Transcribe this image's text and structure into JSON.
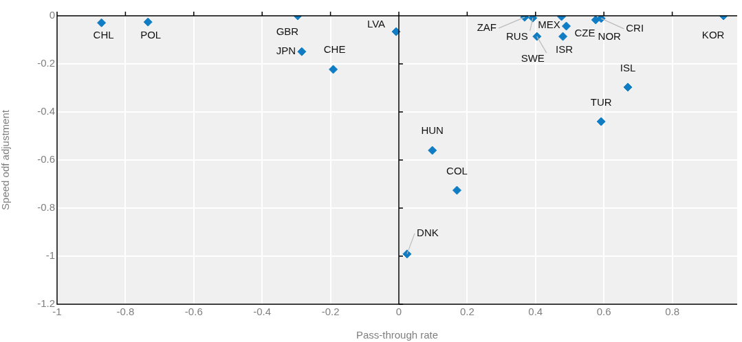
{
  "chart_data": {
    "type": "scatter",
    "xlabel": "Pass-through rate",
    "ylabel": "Speed odf adjustment",
    "x": [
      -0.87,
      -0.734,
      -0.296,
      -0.284,
      -0.192,
      -0.008,
      0.368,
      0.392,
      0.476,
      0.404,
      0.48,
      0.49,
      0.576,
      0.592,
      0.95,
      0.67,
      0.592,
      0.098,
      0.17,
      0.024
    ],
    "series": [
      {
        "color": "#0f7cc4",
        "values": [
          -0.029,
          -0.026,
          0,
          -0.149,
          -0.223,
          -0.066,
          -0.006,
          -0.009,
          -0.003,
          -0.086,
          -0.086,
          -0.043,
          -0.017,
          -0.011,
          0,
          -0.297,
          -0.44,
          -0.56,
          -0.726,
          -0.991
        ]
      }
    ],
    "annotations": [
      {
        "text": "CHL",
        "x": -0.87,
        "y": -0.029
      },
      {
        "text": "POL",
        "x": -0.734,
        "y": -0.026
      },
      {
        "text": "GBR",
        "x": -0.296,
        "y": 0
      },
      {
        "text": "JPN",
        "x": -0.284,
        "y": -0.149
      },
      {
        "text": "CHE",
        "x": -0.192,
        "y": -0.223
      },
      {
        "text": "LVA",
        "x": -0.008,
        "y": -0.066
      },
      {
        "text": "ZAF",
        "x": 0.368,
        "y": -0.006
      },
      {
        "text": "RUS",
        "x": 0.392,
        "y": -0.009
      },
      {
        "text": "MEX",
        "x": 0.476,
        "y": -0.003
      },
      {
        "text": "SWE",
        "x": 0.404,
        "y": -0.086
      },
      {
        "text": "ISR",
        "x": 0.48,
        "y": -0.086
      },
      {
        "text": "CZE",
        "x": 0.49,
        "y": -0.043
      },
      {
        "text": "NOR",
        "x": 0.576,
        "y": -0.017
      },
      {
        "text": "CRI",
        "x": 0.592,
        "y": -0.011
      },
      {
        "text": "KOR",
        "x": 0.95,
        "y": 0
      },
      {
        "text": "ISL",
        "x": 0.67,
        "y": -0.297
      },
      {
        "text": "TUR",
        "x": 0.592,
        "y": -0.44
      },
      {
        "text": "HUN",
        "x": 0.098,
        "y": -0.56
      },
      {
        "text": "COL",
        "x": 0.17,
        "y": -0.726
      },
      {
        "text": "DNK",
        "x": 0.024,
        "y": -0.991
      }
    ],
    "xlim": [
      -1,
      0.99
    ],
    "xticks": [
      -1,
      -0.8,
      -0.6,
      -0.4,
      -0.2,
      0,
      0.2,
      0.4,
      0.6,
      0.8
    ],
    "ylim": [
      -1.2,
      0
    ],
    "yticks": [
      -1.2,
      -1,
      -0.8,
      -0.6,
      -0.4,
      -0.2,
      0
    ],
    "grid": true,
    "marker": "diamond",
    "legend": false
  }
}
